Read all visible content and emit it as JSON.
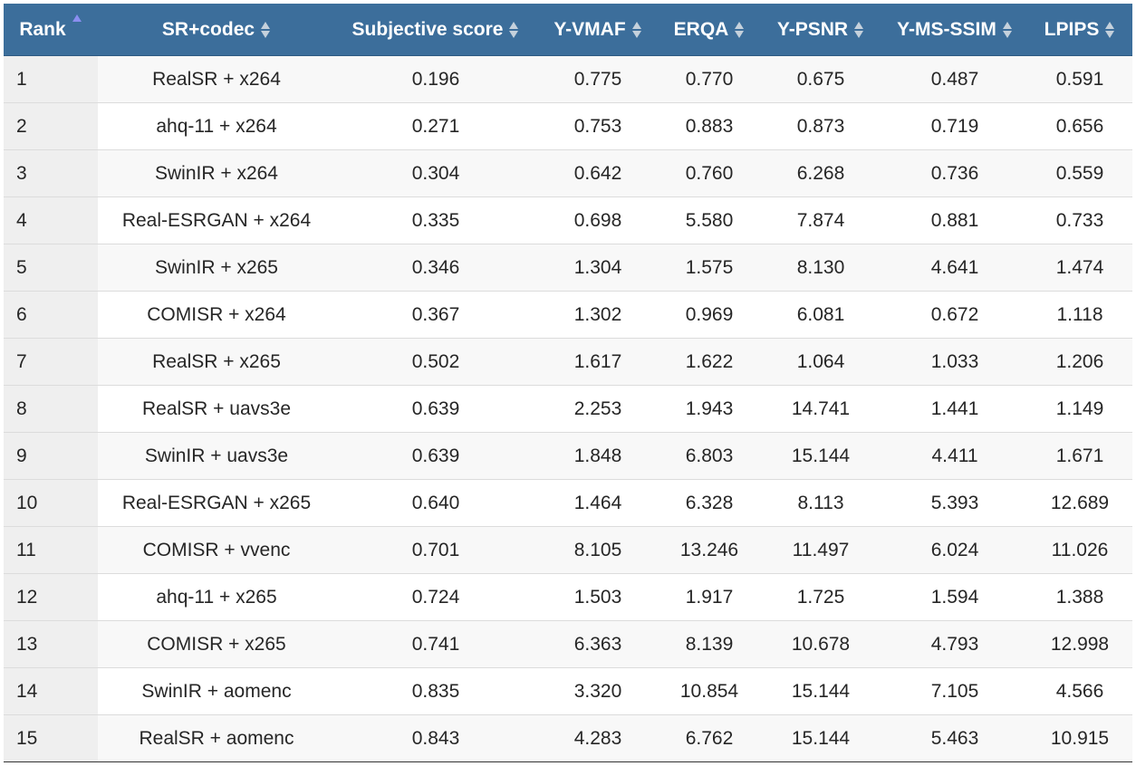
{
  "columns": [
    {
      "label": "Rank",
      "sort": "asc"
    },
    {
      "label": "SR+codec",
      "sort": "none"
    },
    {
      "label": "Subjective score",
      "sort": "none"
    },
    {
      "label": "Y-VMAF",
      "sort": "none"
    },
    {
      "label": "ERQA",
      "sort": "none"
    },
    {
      "label": "Y-PSNR",
      "sort": "none"
    },
    {
      "label": "Y-MS-SSIM",
      "sort": "none"
    },
    {
      "label": "LPIPS",
      "sort": "none"
    }
  ],
  "rows": [
    [
      "1",
      "RealSR + x264",
      "0.196",
      "0.775",
      "0.770",
      "0.675",
      "0.487",
      "0.591"
    ],
    [
      "2",
      "ahq-11 + x264",
      "0.271",
      "0.753",
      "0.883",
      "0.873",
      "0.719",
      "0.656"
    ],
    [
      "3",
      "SwinIR + x264",
      "0.304",
      "0.642",
      "0.760",
      "6.268",
      "0.736",
      "0.559"
    ],
    [
      "4",
      "Real-ESRGAN + x264",
      "0.335",
      "0.698",
      "5.580",
      "7.874",
      "0.881",
      "0.733"
    ],
    [
      "5",
      "SwinIR + x265",
      "0.346",
      "1.304",
      "1.575",
      "8.130",
      "4.641",
      "1.474"
    ],
    [
      "6",
      "COMISR + x264",
      "0.367",
      "1.302",
      "0.969",
      "6.081",
      "0.672",
      "1.118"
    ],
    [
      "7",
      "RealSR + x265",
      "0.502",
      "1.617",
      "1.622",
      "1.064",
      "1.033",
      "1.206"
    ],
    [
      "8",
      "RealSR + uavs3e",
      "0.639",
      "2.253",
      "1.943",
      "14.741",
      "1.441",
      "1.149"
    ],
    [
      "9",
      "SwinIR + uavs3e",
      "0.639",
      "1.848",
      "6.803",
      "15.144",
      "4.411",
      "1.671"
    ],
    [
      "10",
      "Real-ESRGAN + x265",
      "0.640",
      "1.464",
      "6.328",
      "8.113",
      "5.393",
      "12.689"
    ],
    [
      "11",
      "COMISR + vvenc",
      "0.701",
      "8.105",
      "13.246",
      "11.497",
      "6.024",
      "11.026"
    ],
    [
      "12",
      "ahq-11 + x265",
      "0.724",
      "1.503",
      "1.917",
      "1.725",
      "1.594",
      "1.388"
    ],
    [
      "13",
      "COMISR + x265",
      "0.741",
      "6.363",
      "8.139",
      "10.678",
      "4.793",
      "12.998"
    ],
    [
      "14",
      "SwinIR + aomenc",
      "0.835",
      "3.320",
      "10.854",
      "15.144",
      "7.105",
      "4.566"
    ],
    [
      "15",
      "RealSR + aomenc",
      "0.843",
      "4.283",
      "6.762",
      "15.144",
      "5.463",
      "10.915"
    ]
  ],
  "colors": {
    "header_bg": "#3c6e9b",
    "sort_active": "#8b8ef0",
    "sort_inactive": "#c5d1dc"
  },
  "icons": {
    "sort_asc": "sort-ascending-icon",
    "sort_both": "sort-icon"
  }
}
